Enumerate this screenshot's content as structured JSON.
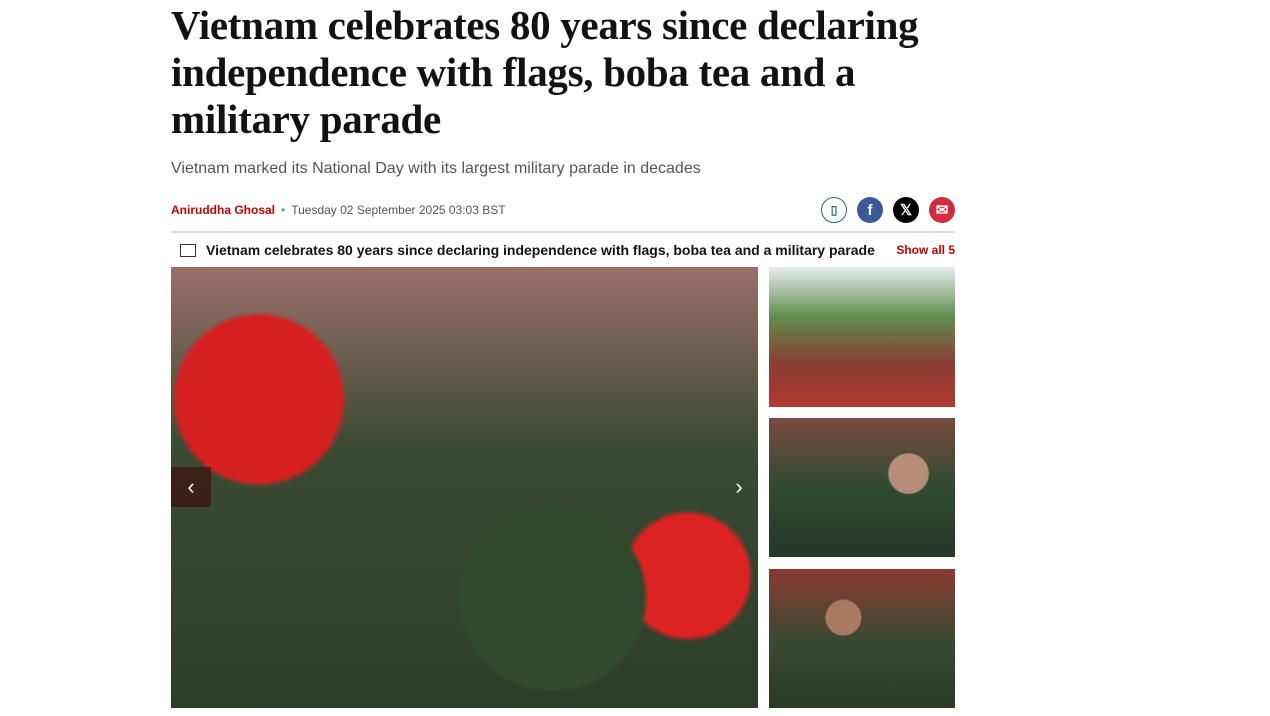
{
  "article": {
    "title": "Vietnam celebrates 80 years since declaring independence with flags, boba tea and a military parade",
    "standfirst": "Vietnam marked its National Day with its largest military parade in decades",
    "author": "Aniruddha Ghosal",
    "separator": "•",
    "date": "Tuesday 02 September 2025 03:03 BST"
  },
  "share": [
    {
      "icon": "bookmark-icon",
      "glyph": "🔖",
      "color": "#ffffff"
    },
    {
      "icon": "facebook-icon",
      "glyph": "f",
      "color": "#3b5998"
    },
    {
      "icon": "x-icon",
      "glyph": "𝕏",
      "color": "#000000"
    },
    {
      "icon": "email-icon",
      "glyph": "✉",
      "color": "#d42c3c"
    }
  ],
  "gallery": {
    "title": "Vietnam celebrates 80 years since declaring independence with flags, boba tea and a military parade",
    "show_all": "Show all 5",
    "prev": "‹",
    "next": "›"
  }
}
